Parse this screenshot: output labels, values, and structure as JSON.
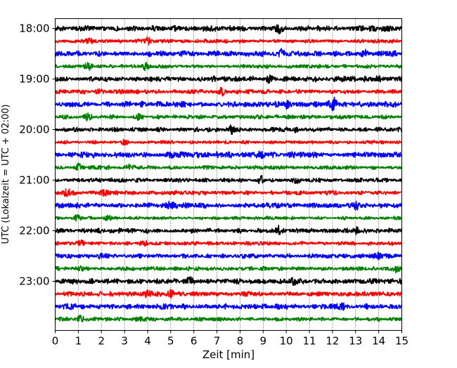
{
  "chart_data": {
    "type": "line",
    "title": "",
    "xlabel": "Zeit  [min]",
    "ylabel": "UTC (Lokalzeit = UTC + 02:00)",
    "xlim": [
      0,
      15
    ],
    "x_ticks": [
      "0",
      "1",
      "2",
      "3",
      "4",
      "5",
      "6",
      "7",
      "8",
      "9",
      "10",
      "11",
      "12",
      "13",
      "14",
      "15"
    ],
    "y_tick_labels": [
      "18:00",
      "19:00",
      "20:00",
      "21:00",
      "22:00",
      "23:00"
    ],
    "grid": "vertical dotted lines at each minute",
    "legend": "none",
    "series_colors": [
      "#000000",
      "#ff0000",
      "#0000ff",
      "#008000"
    ],
    "series": [
      {
        "start": "18:00",
        "color": "#000000",
        "amp": 3,
        "bursts": [
          [
            9.7,
            5
          ]
        ]
      },
      {
        "start": "18:15",
        "color": "#ff0000",
        "amp": 2.2,
        "bursts": [
          [
            4.0,
            4
          ],
          [
            1.5,
            3
          ]
        ]
      },
      {
        "start": "18:30",
        "color": "#0000ff",
        "amp": 3,
        "bursts": [
          [
            9.8,
            4
          ],
          [
            13.4,
            4
          ]
        ]
      },
      {
        "start": "18:45",
        "color": "#008000",
        "amp": 2,
        "bursts": [
          [
            1.4,
            6
          ],
          [
            3.9,
            5
          ]
        ]
      },
      {
        "start": "19:00",
        "color": "#000000",
        "amp": 3,
        "bursts": [
          [
            9.3,
            4
          ],
          [
            14.0,
            4
          ]
        ]
      },
      {
        "start": "19:15",
        "color": "#ff0000",
        "amp": 2.3,
        "bursts": [
          [
            7.2,
            4
          ],
          [
            1.9,
            3
          ]
        ]
      },
      {
        "start": "19:30",
        "color": "#0000ff",
        "amp": 3,
        "bursts": [
          [
            12.0,
            8
          ],
          [
            10.0,
            3
          ]
        ]
      },
      {
        "start": "19:45",
        "color": "#008000",
        "amp": 2.2,
        "bursts": [
          [
            1.4,
            4
          ],
          [
            3.6,
            3
          ]
        ]
      },
      {
        "start": "20:00",
        "color": "#000000",
        "amp": 2.4,
        "bursts": [
          [
            7.6,
            4
          ],
          [
            10.4,
            3
          ]
        ]
      },
      {
        "start": "20:15",
        "color": "#ff0000",
        "amp": 1.8,
        "bursts": [
          [
            3.0,
            3
          ]
        ]
      },
      {
        "start": "20:30",
        "color": "#0000ff",
        "amp": 3.2,
        "bursts": [
          [
            8.9,
            5
          ],
          [
            5.0,
            3
          ]
        ]
      },
      {
        "start": "20:45",
        "color": "#008000",
        "amp": 2.2,
        "bursts": [
          [
            1.0,
            4
          ],
          [
            3.2,
            3
          ]
        ]
      },
      {
        "start": "21:00",
        "color": "#000000",
        "amp": 2.2,
        "bursts": [
          [
            8.9,
            4
          ],
          [
            10.4,
            3
          ]
        ]
      },
      {
        "start": "21:15",
        "color": "#ff0000",
        "amp": 2.4,
        "bursts": [
          [
            0.5,
            5
          ],
          [
            2.1,
            4
          ]
        ]
      },
      {
        "start": "21:30",
        "color": "#0000ff",
        "amp": 2.8,
        "bursts": [
          [
            13.0,
            4
          ],
          [
            5.0,
            3
          ]
        ]
      },
      {
        "start": "21:45",
        "color": "#008000",
        "amp": 1.8,
        "bursts": [
          [
            1.0,
            4
          ],
          [
            2.3,
            3
          ]
        ]
      },
      {
        "start": "22:00",
        "color": "#000000",
        "amp": 2.6,
        "bursts": [
          [
            9.7,
            5
          ],
          [
            13.0,
            4
          ]
        ]
      },
      {
        "start": "22:15",
        "color": "#ff0000",
        "amp": 2.0,
        "bursts": [
          [
            1.1,
            3
          ],
          [
            3.9,
            3
          ]
        ]
      },
      {
        "start": "22:30",
        "color": "#0000ff",
        "amp": 2.4,
        "bursts": [
          [
            14.0,
            4
          ],
          [
            2.0,
            3
          ]
        ]
      },
      {
        "start": "22:45",
        "color": "#008000",
        "amp": 2.2,
        "bursts": [
          [
            14.8,
            4
          ],
          [
            1.1,
            3
          ]
        ]
      },
      {
        "start": "23:00",
        "color": "#000000",
        "amp": 3.0,
        "bursts": [
          [
            5.8,
            4
          ],
          [
            10.3,
            3
          ]
        ]
      },
      {
        "start": "23:15",
        "color": "#ff0000",
        "amp": 2.6,
        "bursts": [
          [
            5.0,
            6
          ],
          [
            4.0,
            3
          ]
        ]
      },
      {
        "start": "23:30",
        "color": "#0000ff",
        "amp": 2.8,
        "bursts": [
          [
            12.4,
            4
          ],
          [
            0.7,
            3
          ]
        ]
      },
      {
        "start": "23:45",
        "color": "#008000",
        "amp": 2.2,
        "bursts": [
          [
            1.1,
            4
          ],
          [
            3.6,
            3
          ]
        ]
      }
    ]
  }
}
